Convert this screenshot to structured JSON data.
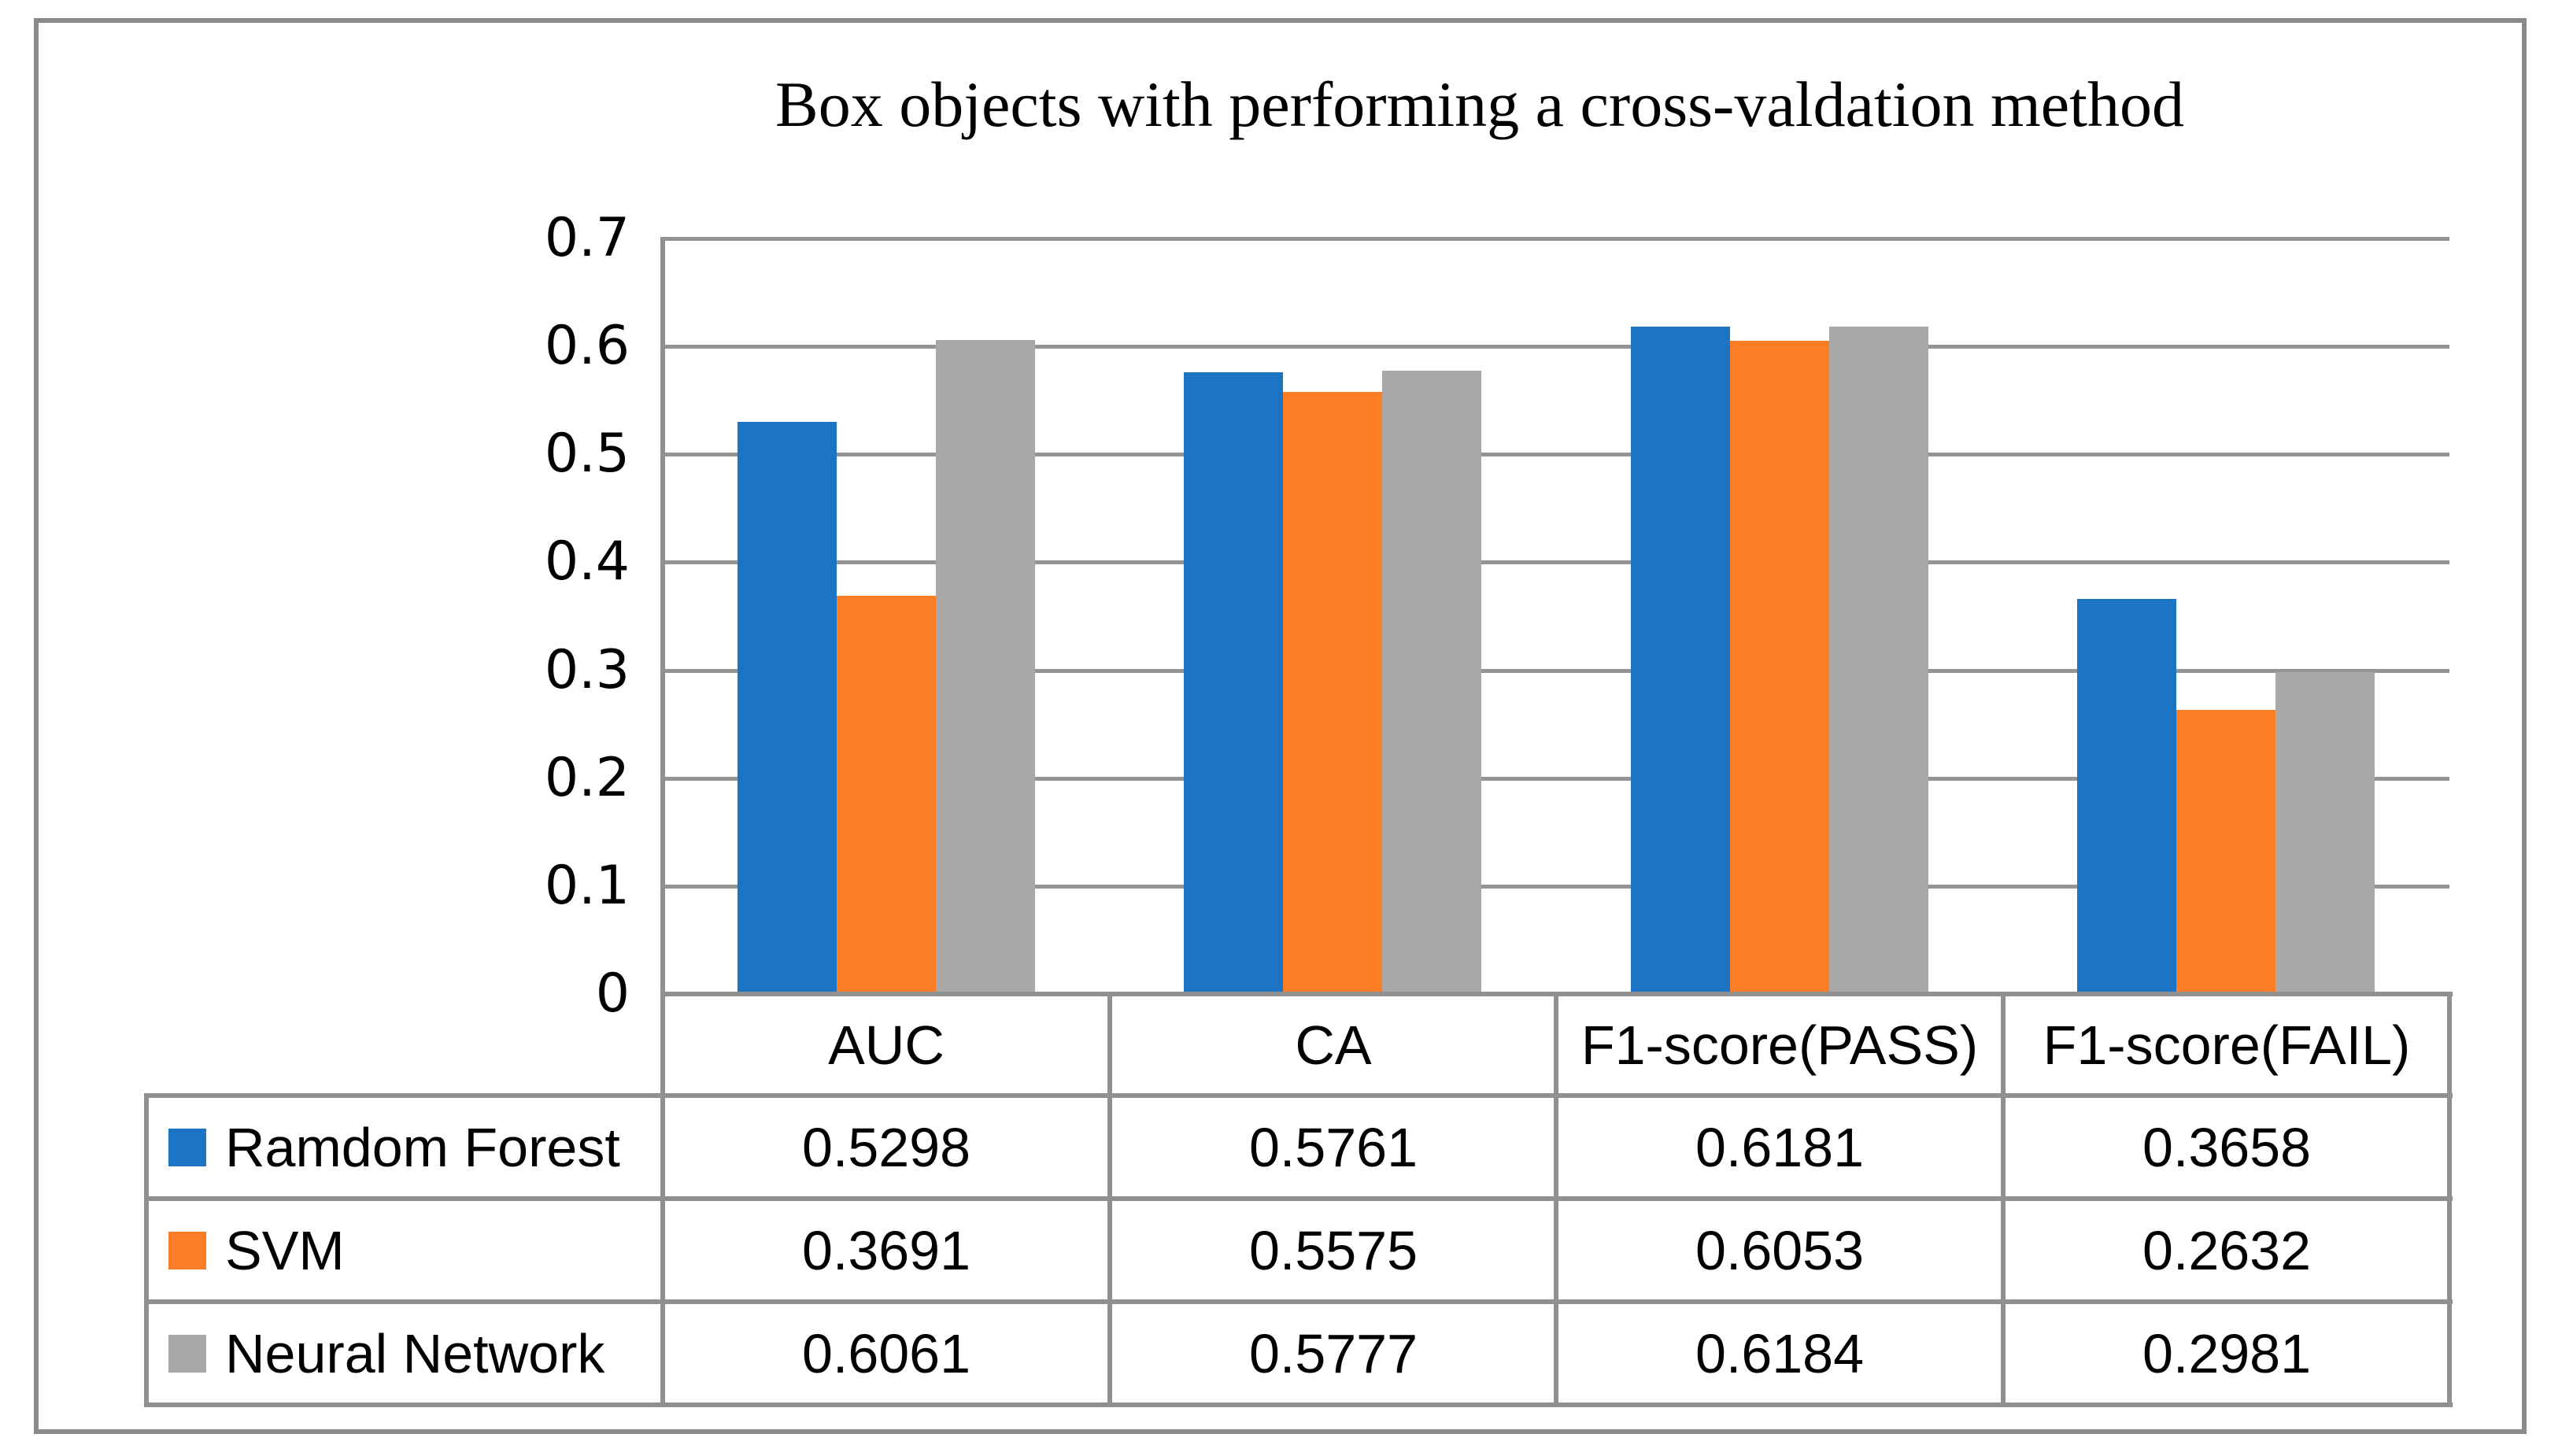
{
  "title": "Box objects with performing a cross-valdation method",
  "colors": {
    "series_blue": "#1c75c4",
    "series_orange": "#fb7d26",
    "series_gray": "#a8a8a8",
    "gridline": "#949494",
    "table_border": "#909090",
    "frame_border": "#8a8a8a",
    "text": "#000000"
  },
  "chart_data": {
    "type": "bar",
    "title": "Box objects with performing a cross-valdation method",
    "categories": [
      "AUC",
      "CA",
      "F1-score(PASS)",
      "F1-score(FAIL)"
    ],
    "series": [
      {
        "name": "Ramdom Forest",
        "color": "#1c75c4",
        "values": [
          0.5298,
          0.5761,
          0.6181,
          0.3658
        ]
      },
      {
        "name": "SVM",
        "color": "#fb7d26",
        "values": [
          0.3691,
          0.5575,
          0.6053,
          0.2632
        ]
      },
      {
        "name": "Neural Network",
        "color": "#a8a8a8",
        "values": [
          0.6061,
          0.5777,
          0.6184,
          0.2981
        ]
      }
    ],
    "ylim": [
      0,
      0.7
    ],
    "ytick_labels": [
      "0.7",
      "0.6",
      "0.5",
      "0.4",
      "0.3",
      "0.2",
      "0.1",
      "0"
    ],
    "grid": true,
    "xlabel": "",
    "ylabel": "",
    "legend_position": "data-table-left",
    "data_table_shown": true,
    "value_decimals": 4
  }
}
